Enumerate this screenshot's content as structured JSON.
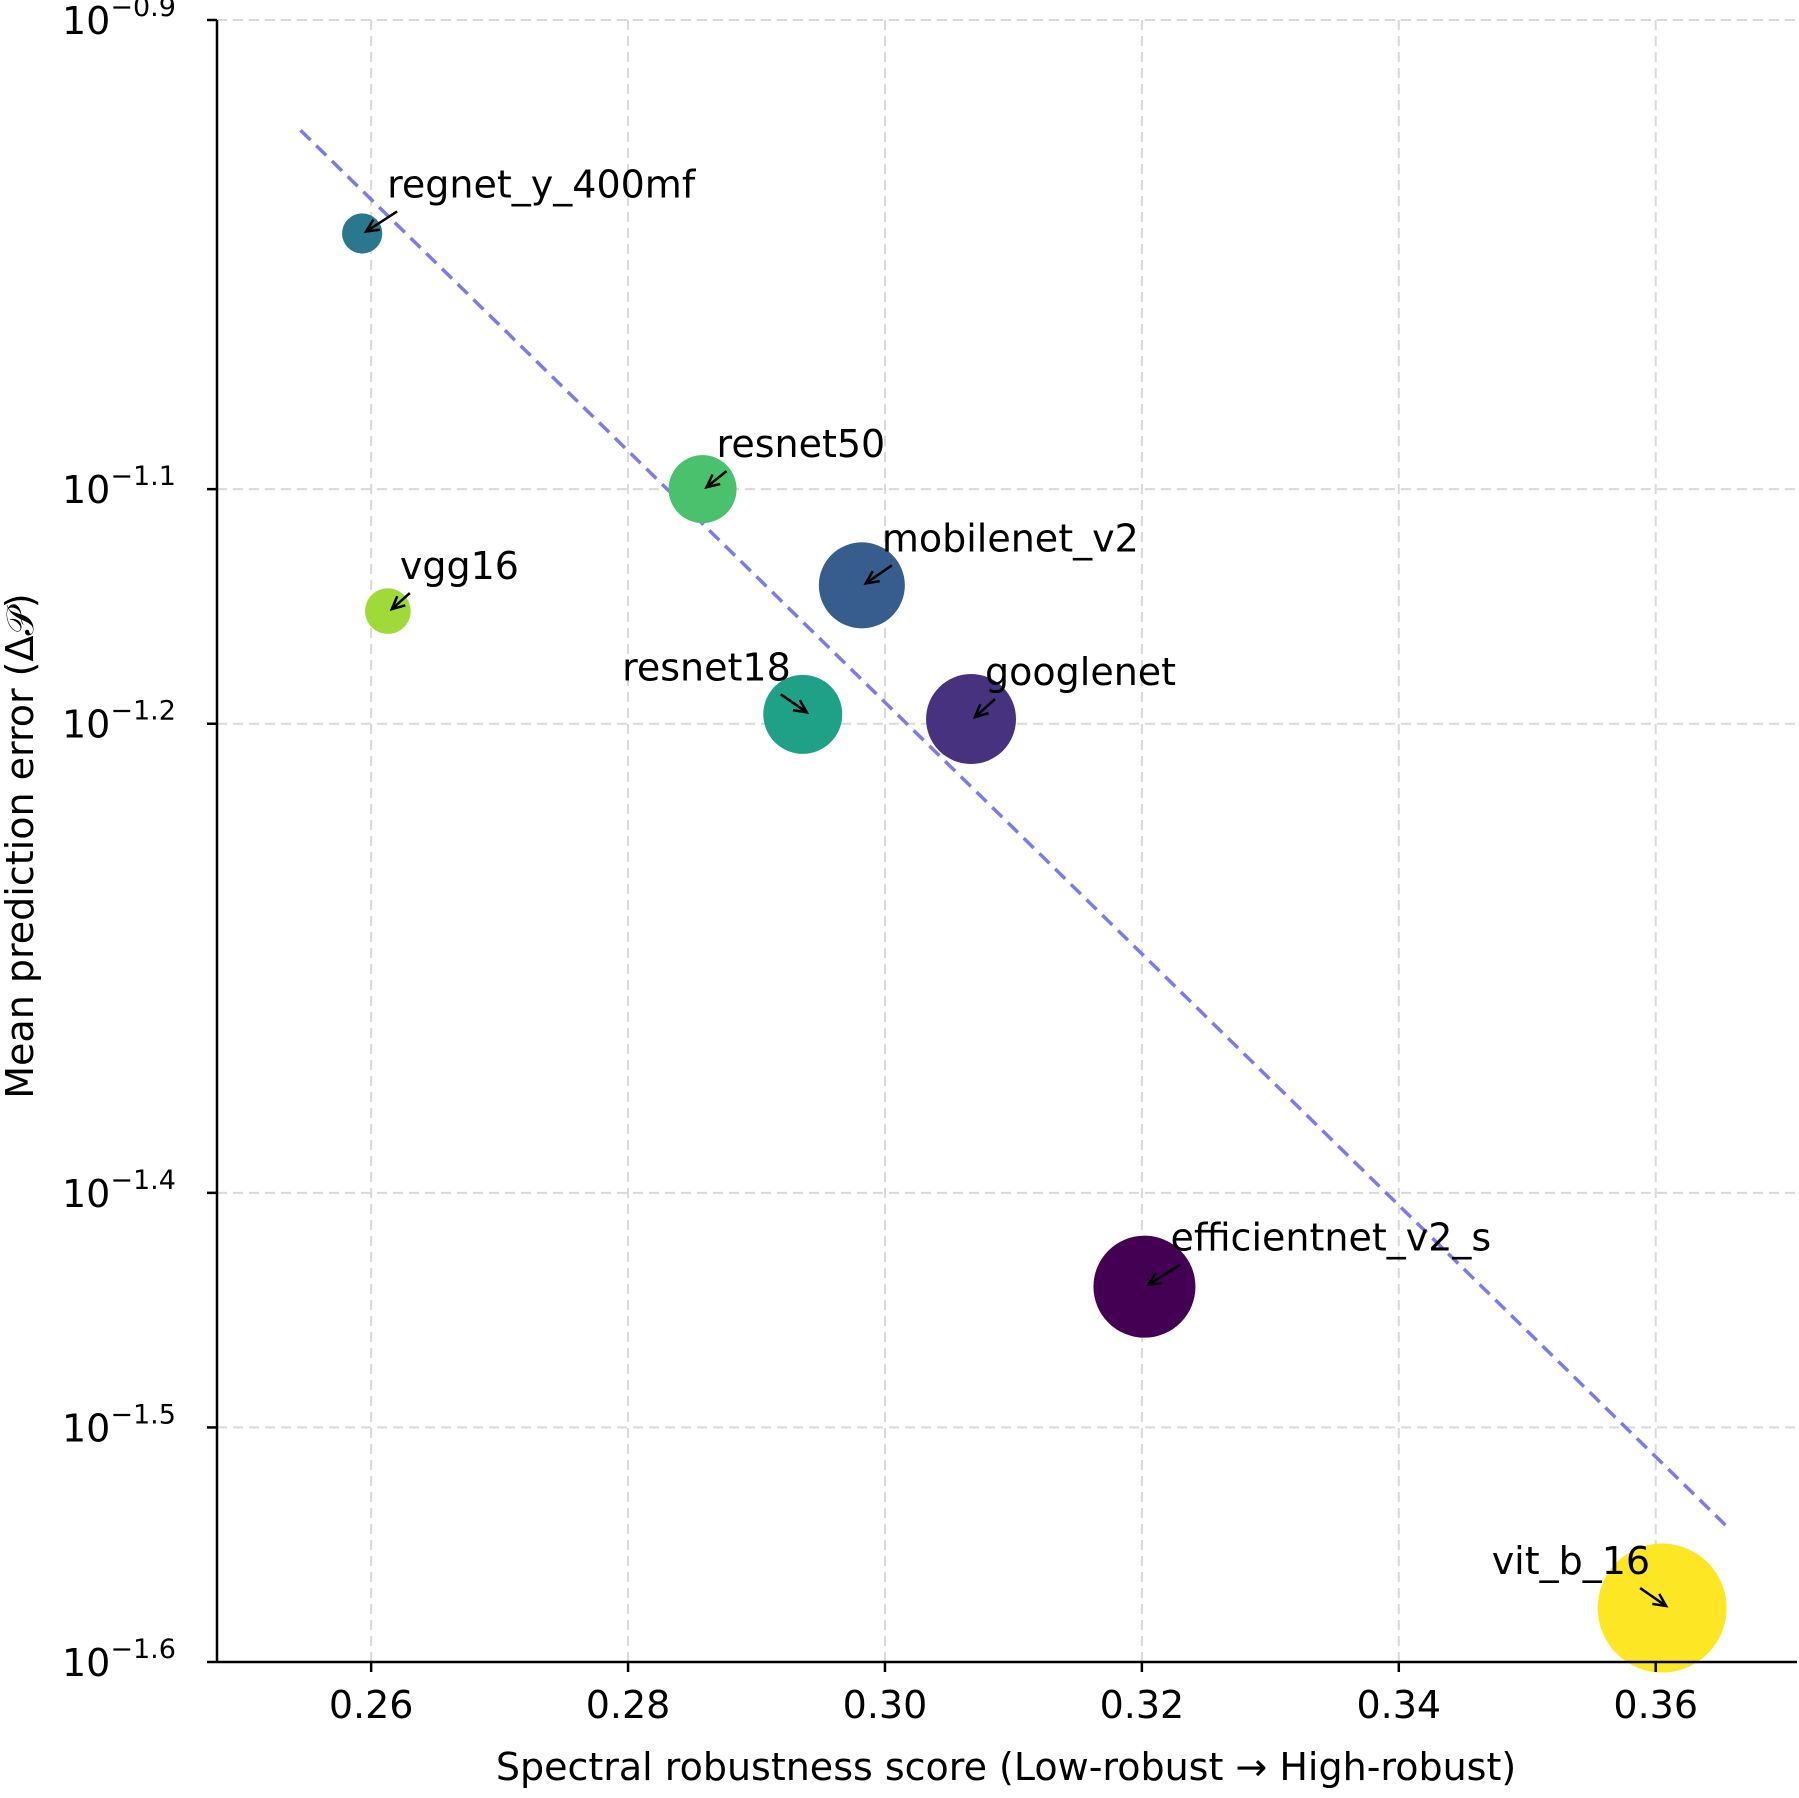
{
  "chart_data": {
    "type": "scatter",
    "xlabel": "Spectral robustness score (Low-robust → High-robust)",
    "ylabel": "Mean prediction error (Δ𝒫)",
    "xlim": [
      0.248,
      0.371
    ],
    "ylim": [
      -1.6,
      -0.9
    ],
    "y_scale": "log",
    "x_ticks": [
      0.26,
      0.28,
      0.3,
      0.32,
      0.34,
      0.36
    ],
    "x_tick_labels": [
      "0.26",
      "0.28",
      "0.30",
      "0.32",
      "0.34",
      "0.36"
    ],
    "y_ticks": [
      {
        "exp": -0.9,
        "base": "10",
        "sup": "−0.9"
      },
      {
        "exp": -1.1,
        "base": "10",
        "sup": "−1.1"
      },
      {
        "exp": -1.2,
        "base": "10",
        "sup": "−1.2"
      },
      {
        "exp": -1.4,
        "base": "10",
        "sup": "−1.4"
      },
      {
        "exp": -1.5,
        "base": "10",
        "sup": "−1.5"
      },
      {
        "exp": -1.6,
        "base": "10",
        "sup": "−1.6"
      }
    ],
    "grid": true,
    "points": [
      {
        "label": "regnet_y_400mf",
        "x": 0.2593,
        "exp": -0.991,
        "color": "#2a788e",
        "size": 0.35
      },
      {
        "label": "resnet50",
        "x": 0.2858,
        "exp": -1.1,
        "color": "#4ac16d",
        "size": 1.0
      },
      {
        "label": "vgg16",
        "x": 0.2613,
        "exp": -1.152,
        "color": "#a0da39",
        "size": 0.45
      },
      {
        "label": "mobilenet_v2",
        "x": 0.2982,
        "exp": -1.141,
        "color": "#365d8d",
        "size": 1.6
      },
      {
        "label": "resnet18",
        "x": 0.2936,
        "exp": -1.196,
        "color": "#1fa188",
        "size": 1.35
      },
      {
        "label": "googlenet",
        "x": 0.3067,
        "exp": -1.198,
        "color": "#46327e",
        "size": 1.75
      },
      {
        "label": "efficientnet_v2_s",
        "x": 0.3202,
        "exp": -1.44,
        "color": "#440154",
        "size": 2.25
      },
      {
        "label": "vit_b_16",
        "x": 0.3605,
        "exp": -1.577,
        "color": "#fde725",
        "size": 3.6
      }
    ],
    "trendline": {
      "x": [
        0.2545,
        0.3655
      ],
      "exp": [
        -0.947,
        -1.542
      ],
      "color": "#7b7bf0",
      "style": "dashed"
    }
  }
}
